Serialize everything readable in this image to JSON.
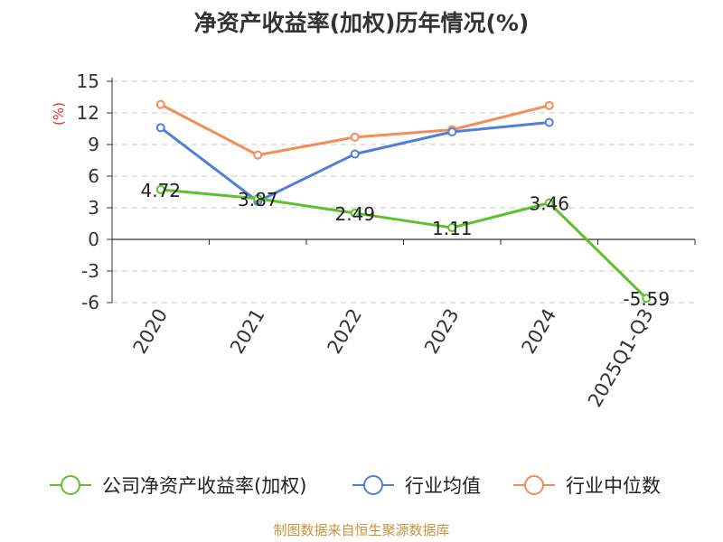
{
  "title": "净资产收益率(加权)历年情况(%)",
  "source": "制图数据来自恒生聚源数据库",
  "chart_data": {
    "type": "line",
    "title": "净资产收益率(加权)历年情况(%)",
    "ylabel": "(%)",
    "ylim": [
      -6,
      15
    ],
    "yticks": [
      15,
      12,
      9,
      6,
      3,
      0,
      -3,
      -6
    ],
    "grid": true,
    "legend_position": "bottom",
    "categories": [
      "2020",
      "2021",
      "2022",
      "2023",
      "2024",
      "2025Q1-Q3"
    ],
    "series": [
      {
        "name": "公司净资产收益率(加权)",
        "color": "#5dc12b",
        "values": [
          4.72,
          3.87,
          2.49,
          1.11,
          3.46,
          -5.59
        ],
        "labels": [
          "4.72",
          "3.87",
          "2.49",
          "1.11",
          "3.46",
          "-5.59"
        ]
      },
      {
        "name": "行业均值",
        "color": "#4f7fdb",
        "values": [
          10.6,
          3.6,
          8.1,
          10.2,
          11.1,
          null
        ]
      },
      {
        "name": "行业中位数",
        "color": "#f58c57",
        "values": [
          12.8,
          8.0,
          9.7,
          10.4,
          12.7,
          null
        ]
      }
    ]
  }
}
